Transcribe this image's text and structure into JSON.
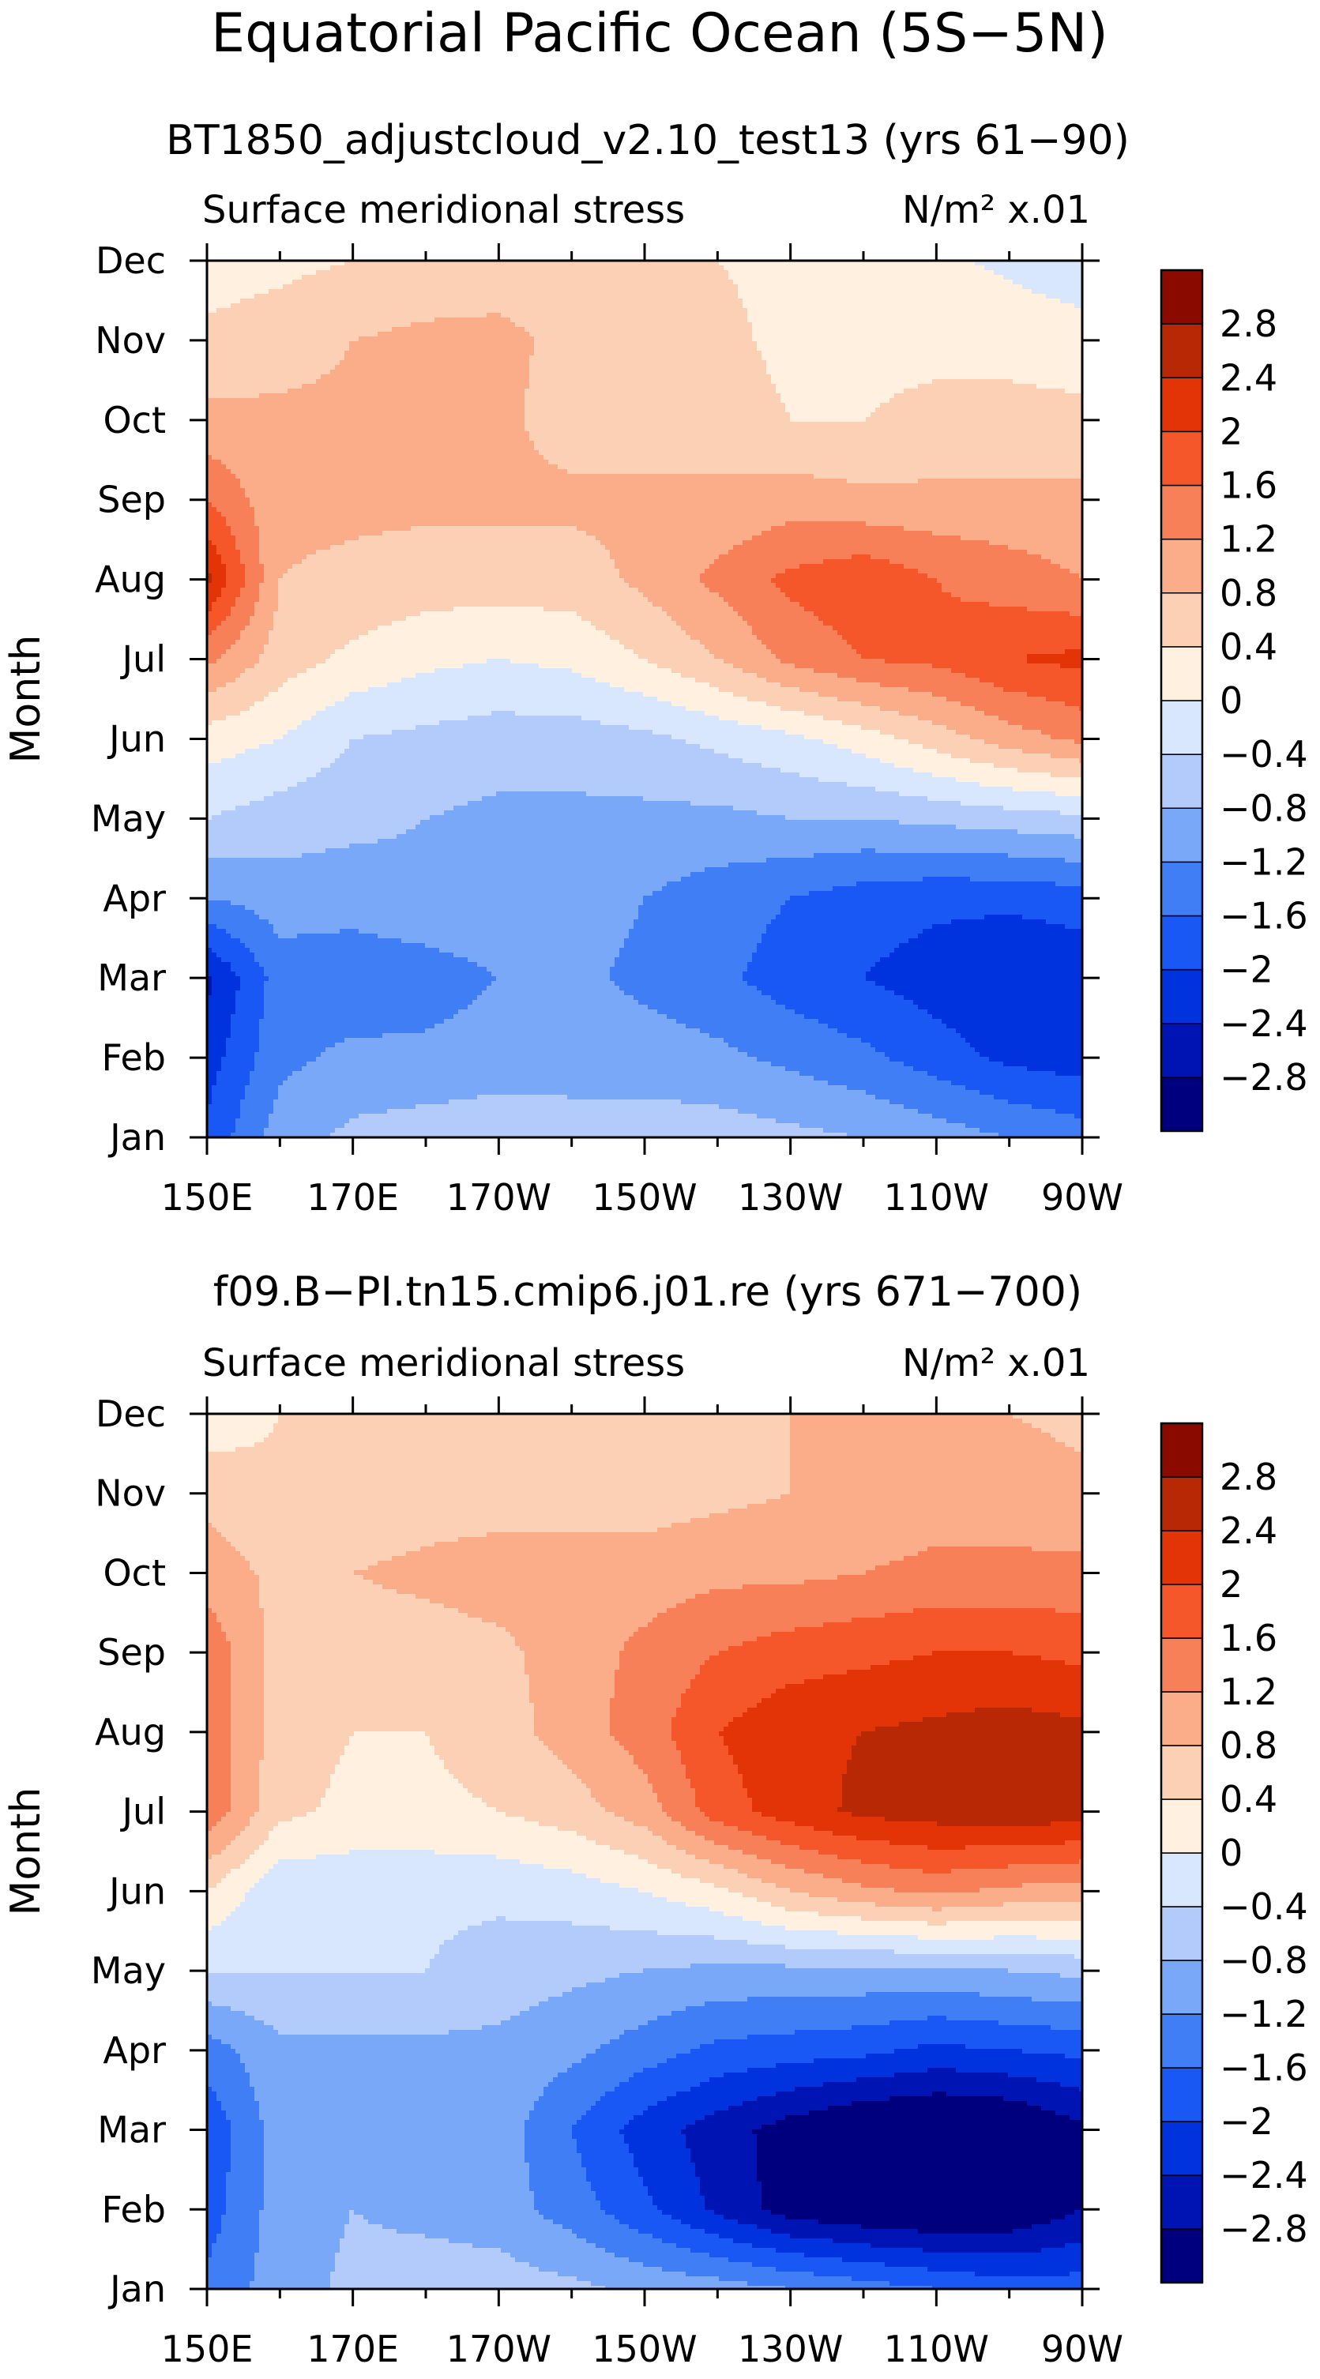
{
  "figure": {
    "title": "Equatorial Pacific Ocean (5S−5N)"
  },
  "colorbar": {
    "colors": [
      "#00007f",
      "#0013b3",
      "#0033dd",
      "#1958f5",
      "#3f7ef5",
      "#7aa8f8",
      "#b2cbfa",
      "#d8e7fd",
      "#fff0e0",
      "#fcd0b5",
      "#fbac88",
      "#f88058",
      "#f5562a",
      "#e23406",
      "#b82805",
      "#8b0a00"
    ],
    "labels": [
      "−2.8",
      "−2.4",
      "−2",
      "−1.6",
      "−1.2",
      "−0.8",
      "−0.4",
      "0",
      "0.4",
      "0.8",
      "1.2",
      "1.6",
      "2",
      "2.4",
      "2.8"
    ]
  },
  "chart_data": [
    {
      "type": "heatmap",
      "title": "BT1850_adjustcloud_v2.10_test13 (yrs 61−90)",
      "variable": "Surface meridional stress",
      "units": "N/m² x.01",
      "xlabel": "",
      "ylabel": "Month",
      "x_ticks": [
        "150E",
        "170E",
        "170W",
        "150W",
        "130W",
        "110W",
        "90W"
      ],
      "y_ticks": [
        "Jan",
        "Feb",
        "Mar",
        "Apr",
        "May",
        "Jun",
        "Jul",
        "Aug",
        "Sep",
        "Oct",
        "Nov",
        "Dec"
      ],
      "x_values_lon": [
        150,
        160,
        170,
        180,
        190,
        200,
        210,
        220,
        230,
        240,
        250,
        260,
        270
      ],
      "levels": [
        -2.8,
        -2.4,
        -2,
        -1.6,
        -1.2,
        -0.8,
        -0.4,
        0,
        0.4,
        0.8,
        1.2,
        1.6,
        2,
        2.4,
        2.8
      ],
      "z": [
        [
          -1.9,
          -1.0,
          -0.7,
          -0.6,
          -0.55,
          -0.6,
          -0.6,
          -0.6,
          -0.7,
          -0.8,
          -1.0,
          -1.2,
          -1.4
        ],
        [
          -2.2,
          -1.3,
          -1.1,
          -1.1,
          -1.0,
          -1.0,
          -1.0,
          -1.1,
          -1.3,
          -1.5,
          -1.8,
          -2.1,
          -2.2
        ],
        [
          -2.5,
          -1.4,
          -1.5,
          -1.4,
          -1.2,
          -1.1,
          -1.3,
          -1.5,
          -1.8,
          -2.0,
          -2.2,
          -2.4,
          -2.3
        ],
        [
          -1.2,
          -1.0,
          -1.0,
          -0.9,
          -0.9,
          -1.0,
          -1.2,
          -1.4,
          -1.6,
          -1.8,
          -1.9,
          -1.9,
          -1.8
        ],
        [
          -0.4,
          -0.6,
          -0.7,
          -0.8,
          -0.9,
          -0.9,
          -0.9,
          -0.9,
          -0.8,
          -0.8,
          -0.7,
          -0.6,
          -0.5
        ],
        [
          0.2,
          0.0,
          -0.4,
          -0.5,
          -0.6,
          -0.6,
          -0.5,
          -0.3,
          -0.1,
          0.2,
          0.6,
          1.0,
          1.3
        ],
        [
          1.3,
          0.6,
          0.3,
          0.1,
          0.0,
          0.1,
          0.4,
          0.8,
          1.3,
          1.6,
          1.7,
          2.0,
          2.1
        ],
        [
          2.5,
          0.8,
          0.7,
          0.6,
          0.6,
          0.6,
          0.9,
          1.3,
          1.7,
          1.9,
          1.6,
          1.4,
          1.2
        ],
        [
          1.6,
          0.9,
          0.9,
          0.9,
          0.9,
          0.9,
          0.9,
          0.9,
          1.0,
          0.9,
          0.9,
          0.9,
          0.9
        ],
        [
          0.9,
          0.9,
          0.9,
          0.9,
          0.9,
          0.6,
          0.6,
          0.6,
          0.4,
          0.4,
          0.5,
          0.5,
          0.5
        ],
        [
          0.5,
          0.6,
          0.8,
          0.9,
          0.9,
          0.7,
          0.6,
          0.5,
          0.3,
          0.3,
          0.3,
          0.3,
          0.2
        ],
        [
          0.2,
          0.3,
          0.4,
          0.5,
          0.6,
          0.6,
          0.5,
          0.4,
          0.3,
          0.2,
          0.1,
          -0.1,
          -0.3
        ]
      ]
    },
    {
      "type": "heatmap",
      "title": "f09.B−PI.tn15.cmip6.j01.re (yrs 671−700)",
      "variable": "Surface meridional stress",
      "units": "N/m² x.01",
      "xlabel": "",
      "ylabel": "Month",
      "x_ticks": [
        "150E",
        "170E",
        "170W",
        "150W",
        "130W",
        "110W",
        "90W"
      ],
      "y_ticks": [
        "Jan",
        "Feb",
        "Mar",
        "Apr",
        "May",
        "Jun",
        "Jul",
        "Aug",
        "Sep",
        "Oct",
        "Nov",
        "Dec"
      ],
      "x_values_lon": [
        150,
        160,
        170,
        180,
        190,
        200,
        210,
        220,
        230,
        240,
        250,
        260,
        270
      ],
      "levels": [
        -2.8,
        -2.4,
        -2,
        -1.6,
        -1.2,
        -0.8,
        -0.4,
        0,
        0.4,
        0.8,
        1.2,
        1.6,
        2,
        2.4,
        2.8
      ],
      "z": [
        [
          -1.5,
          -1.0,
          -0.7,
          -0.6,
          -0.6,
          -0.7,
          -0.9,
          -1.0,
          -1.2,
          -1.4,
          -1.6,
          -1.8,
          -1.8
        ],
        [
          -1.8,
          -1.0,
          -0.8,
          -0.9,
          -1.0,
          -1.4,
          -1.9,
          -2.5,
          -3.0,
          -3.2,
          -3.3,
          -3.2,
          -2.8
        ],
        [
          -1.9,
          -1.0,
          -0.9,
          -0.9,
          -1.0,
          -1.6,
          -2.2,
          -2.6,
          -3.0,
          -3.3,
          -3.4,
          -3.3,
          -2.9
        ],
        [
          -1.4,
          -0.9,
          -0.9,
          -0.9,
          -0.9,
          -1.1,
          -1.4,
          -1.7,
          -1.8,
          -1.9,
          -2.1,
          -2.0,
          -1.9
        ],
        [
          -0.4,
          -0.4,
          -0.4,
          -0.4,
          -0.6,
          -0.7,
          -0.8,
          -0.9,
          -0.9,
          -0.9,
          -0.9,
          -0.8,
          -0.7
        ],
        [
          0.4,
          -0.3,
          -0.3,
          -0.3,
          -0.3,
          -0.2,
          0.0,
          0.3,
          0.8,
          1.1,
          1.3,
          1.1,
          1.0
        ],
        [
          1.5,
          0.5,
          0.3,
          0.3,
          0.4,
          0.6,
          1.0,
          1.8,
          2.2,
          2.5,
          2.6,
          2.7,
          2.6
        ],
        [
          1.5,
          0.6,
          0.4,
          0.4,
          0.6,
          1.0,
          1.4,
          2.0,
          2.3,
          2.4,
          2.5,
          2.6,
          2.5
        ],
        [
          1.5,
          0.6,
          0.6,
          0.6,
          0.7,
          1.0,
          1.3,
          1.6,
          1.8,
          1.9,
          2.0,
          2.0,
          1.9
        ],
        [
          1.0,
          0.7,
          0.8,
          0.9,
          1.0,
          1.0,
          1.0,
          1.1,
          1.1,
          1.2,
          1.3,
          1.3,
          1.3
        ],
        [
          0.7,
          0.5,
          0.5,
          0.6,
          0.6,
          0.6,
          0.6,
          0.7,
          0.8,
          0.9,
          1.0,
          1.0,
          0.9
        ],
        [
          0.1,
          0.4,
          0.5,
          0.5,
          0.5,
          0.5,
          0.5,
          0.6,
          0.8,
          0.9,
          0.9,
          0.8,
          0.7
        ]
      ]
    }
  ]
}
